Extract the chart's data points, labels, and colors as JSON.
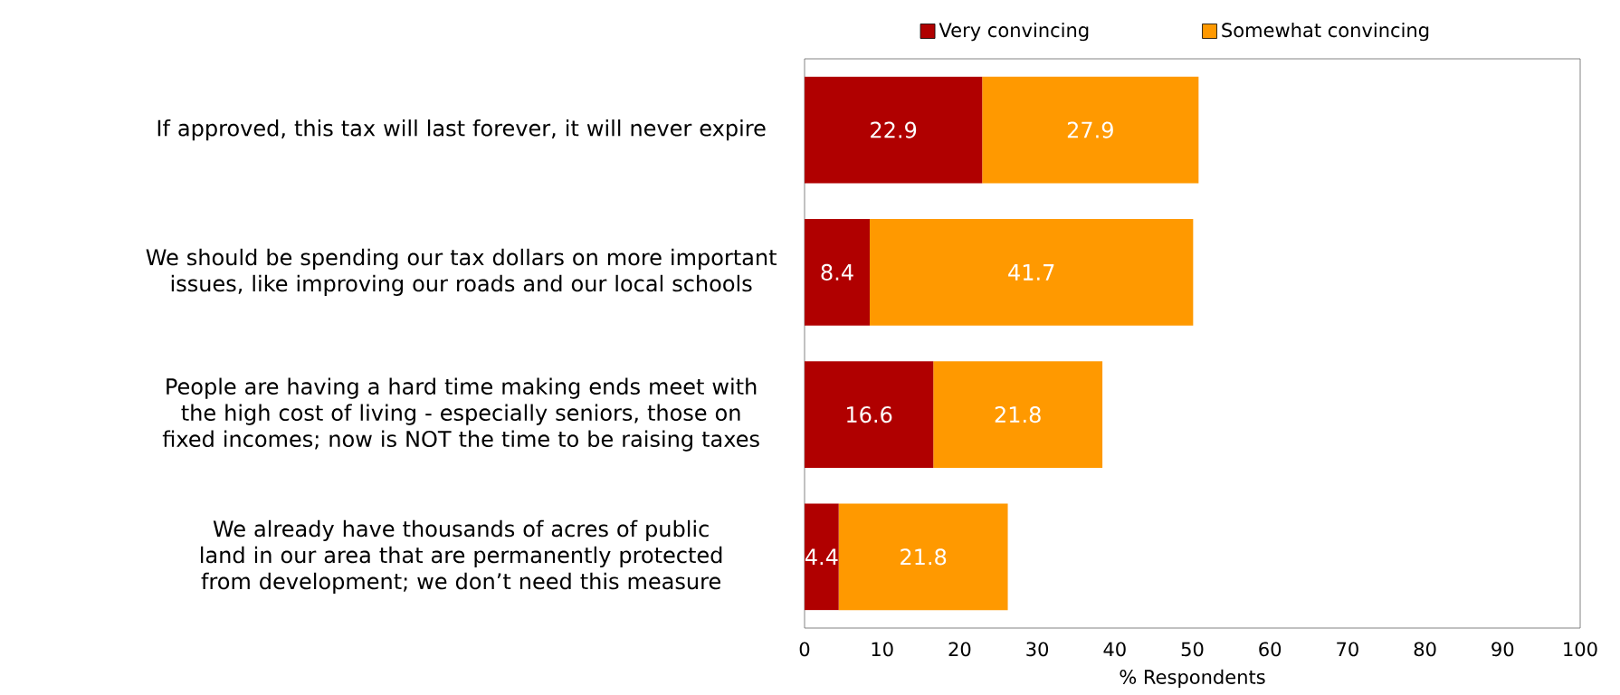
{
  "chart_data": {
    "type": "bar",
    "orientation": "horizontal",
    "stacked": true,
    "categories": [
      "If approved, this tax will last forever, it will never expire",
      "We should be spending our tax dollars on more important issues, like improving our roads and our local schools",
      "People are having a hard time making ends meet with the high cost of living - especially seniors, those on fixed incomes; now is NOT the time to be raising taxes",
      "We already have thousands of acres of public land in our area that are permanently protected from development; we don’t need this measure"
    ],
    "series": [
      {
        "name": "Very convincing",
        "color": "#b00000",
        "values": [
          22.9,
          8.4,
          16.6,
          4.4
        ]
      },
      {
        "name": "Somewhat convincing",
        "color": "#ff9900",
        "values": [
          27.9,
          41.7,
          21.8,
          21.8
        ]
      }
    ],
    "xlim": [
      0,
      100
    ],
    "xticks": [
      0,
      10,
      20,
      30,
      40,
      50,
      60,
      70,
      80,
      90,
      100
    ],
    "xlabel": "% Respondents",
    "data_labels": true,
    "legend": "top",
    "grid": false
  }
}
